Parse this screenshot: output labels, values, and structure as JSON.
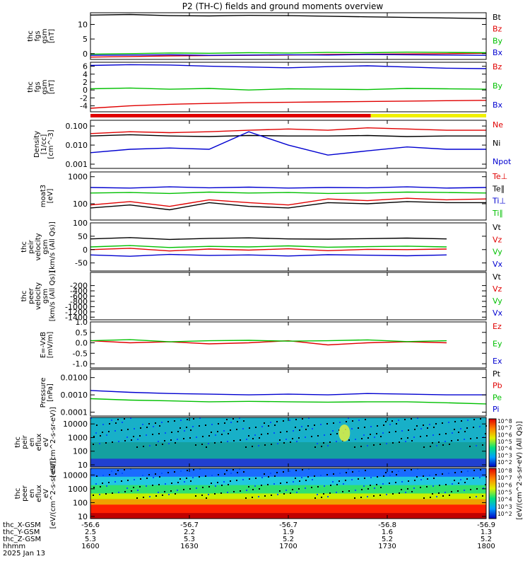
{
  "chart_data": {
    "type": "line",
    "title": "P2 (TH-C) fields and ground moments overview",
    "xlim": [
      1600,
      1800
    ],
    "xticks": [
      1600,
      1630,
      1700,
      1730,
      1800
    ],
    "xticks_minutes": [
      0,
      30,
      60,
      90,
      120
    ],
    "orbit": {
      "row_labels": [
        "thc_X-GSM",
        "thc_Y-GSM",
        "thc_Z-GSM",
        "hhmm",
        "2025 Jan 13"
      ],
      "columns": [
        [
          "-56.6",
          "2.5",
          "5.3",
          "1600"
        ],
        [
          "-56.7",
          "2.2",
          "5.3",
          "1630"
        ],
        [
          "-56.7",
          "1.9",
          "5.2",
          "1700"
        ],
        [
          "-56.8",
          "1.6",
          "5.2",
          "1730"
        ],
        [
          "-56.9",
          "1.3",
          "5.2",
          "1800"
        ]
      ]
    },
    "panels": [
      {
        "id": "fgs_gsm",
        "ylabel": [
          "thc",
          "fgs",
          "gsm",
          "[nT]"
        ],
        "ylim": [
          -2,
          14
        ],
        "yticks": [
          "10",
          "5",
          "0"
        ],
        "ytick_values": [
          10,
          5,
          0
        ],
        "series": [
          {
            "name": "Bt",
            "color": "#000000",
            "values": [
              13.2,
              13.4,
              13.0,
              12.9,
              13.1,
              13.0,
              12.8,
              12.6,
              12.4,
              12.2,
              12.0
            ]
          },
          {
            "name": "Bz",
            "color": "#e00000",
            "values": [
              -1.2,
              -1.0,
              -0.8,
              -0.7,
              -0.6,
              -0.5,
              -0.3,
              -0.2,
              -0.1,
              0.0,
              0.1
            ]
          },
          {
            "name": "By",
            "color": "#00c000",
            "values": [
              -0.2,
              0.0,
              0.2,
              0.1,
              0.3,
              0.2,
              0.4,
              0.3,
              0.5,
              0.4,
              0.3
            ]
          },
          {
            "name": "Bx",
            "color": "#0000d0",
            "values": [
              -0.6,
              -0.5,
              -0.4,
              -0.6,
              -0.5,
              -0.4,
              -0.5,
              -0.3,
              -0.4,
              -0.5,
              -0.6
            ]
          }
        ]
      },
      {
        "id": "fgs_gsm_dsl",
        "ylabel": [
          "thc",
          "fgs",
          "gsm",
          "[nT]"
        ],
        "ylim": [
          -5.5,
          7
        ],
        "yticks": [
          "6",
          "4",
          "2",
          "0",
          "-2",
          "-4"
        ],
        "ytick_values": [
          6,
          4,
          2,
          0,
          -2,
          -4
        ],
        "series": [
          {
            "name": "Bz",
            "color": "#e00000",
            "values": [
              -4.6,
              -4.0,
              -3.6,
              -3.4,
              -3.2,
              -3.1,
              -3.0,
              -2.9,
              -2.8,
              -2.7,
              -2.6
            ]
          },
          {
            "name": "By",
            "color": "#00c000",
            "values": [
              0.3,
              0.5,
              0.2,
              0.4,
              0.0,
              0.3,
              0.2,
              0.1,
              0.4,
              0.3,
              0.2
            ]
          },
          {
            "name": "Bx",
            "color": "#0000d0",
            "values": [
              6.2,
              6.4,
              6.3,
              6.0,
              5.8,
              5.6,
              5.9,
              6.1,
              5.8,
              5.5,
              5.4
            ]
          }
        ]
      },
      {
        "id": "density",
        "ylabel": [
          "Density",
          "[1/cc]",
          "[cm^-3]"
        ],
        "ylim": [
          0.0006,
          0.2
        ],
        "log": true,
        "yticks": [
          "0.100",
          "0.010",
          "0.001"
        ],
        "ytick_values": [
          0.1,
          0.01,
          0.001
        ],
        "series": [
          {
            "name": "Ne",
            "color": "#e00000",
            "values": [
              0.04,
              0.05,
              0.045,
              0.05,
              0.06,
              0.07,
              0.06,
              0.08,
              0.07,
              0.06,
              0.06
            ]
          },
          {
            "name": "Ni",
            "color": "#000000",
            "values": [
              0.03,
              0.035,
              0.03,
              0.028,
              0.032,
              0.03,
              0.03,
              0.032,
              0.028,
              0.03,
              0.03
            ]
          },
          {
            "name": "Npot",
            "color": "#0000d0",
            "values": [
              0.004,
              0.006,
              0.007,
              0.006,
              0.05,
              0.01,
              0.003,
              0.005,
              0.008,
              0.006,
              0.006
            ]
          }
        ]
      },
      {
        "id": "temp",
        "ylabel": [
          "moat3",
          "[eV]"
        ],
        "ylim": [
          25,
          1500
        ],
        "log": true,
        "yticks": [
          "1000",
          "100"
        ],
        "ytick_values": [
          1000,
          100
        ],
        "series": [
          {
            "name": "Te⊥",
            "color": "#e00000",
            "values": [
              90,
              120,
              80,
              140,
              110,
              90,
              150,
              130,
              160,
              140,
              150
            ]
          },
          {
            "name": "Te∥",
            "color": "#000000",
            "values": [
              70,
              90,
              60,
              110,
              80,
              70,
              110,
              100,
              120,
              110,
              110
            ]
          },
          {
            "name": "Ti⊥",
            "color": "#0000d0",
            "values": [
              400,
              380,
              420,
              390,
              410,
              380,
              400,
              390,
              420,
              380,
              400
            ]
          },
          {
            "name": "Ti∥",
            "color": "#00c000",
            "values": [
              250,
              260,
              240,
              270,
              250,
              260,
              240,
              250,
              270,
              260,
              250
            ]
          }
        ]
      },
      {
        "id": "peir_vel",
        "ylabel": [
          "thc",
          "peir",
          "velocity",
          "gsm",
          "[km/s (All Qs)]"
        ],
        "ylim": [
          -80,
          100
        ],
        "yticks": [
          "100",
          "50",
          "0",
          "-50"
        ],
        "ytick_values": [
          100,
          50,
          0,
          -50
        ],
        "series": [
          {
            "name": "Vt",
            "color": "#000000",
            "values": [
              40,
              45,
              38,
              42,
              44,
              40,
              39,
              41,
              43,
              40,
              null
            ]
          },
          {
            "name": "Vz",
            "color": "#e00000",
            "values": [
              0,
              5,
              -5,
              2,
              -2,
              3,
              -4,
              1,
              0,
              2,
              null
            ]
          },
          {
            "name": "Vy",
            "color": "#00c000",
            "values": [
              10,
              15,
              8,
              12,
              10,
              14,
              9,
              11,
              13,
              10,
              null
            ]
          },
          {
            "name": "Vx",
            "color": "#0000d0",
            "values": [
              -20,
              -25,
              -18,
              -22,
              -20,
              -24,
              -19,
              -21,
              -23,
              -20,
              null
            ]
          }
        ]
      },
      {
        "id": "peer_vel",
        "ylabel": [
          "thc",
          "peer",
          "velocity",
          "gsm",
          "[km/s (All Qs)]"
        ],
        "ylim": [
          -1500,
          300
        ],
        "yticks": [
          "-200",
          "-400",
          "-600",
          "-800",
          "-1000",
          "-1200",
          "-1400"
        ],
        "ytick_values": [
          -200,
          -400,
          -600,
          -800,
          -1000,
          -1200,
          -1400
        ],
        "series": [
          {
            "name": "Vt",
            "color": "#000000",
            "values": []
          },
          {
            "name": "Vz",
            "color": "#e00000",
            "values": []
          },
          {
            "name": "Vy",
            "color": "#00c000",
            "values": []
          },
          {
            "name": "Vx",
            "color": "#0000d0",
            "values": []
          }
        ]
      },
      {
        "id": "efield",
        "ylabel": [
          "E=-VxB",
          "[mV/m]"
        ],
        "ylim": [
          -1.2,
          1.0
        ],
        "yticks": [
          "1.0",
          "0.5",
          "0.0",
          "-0.5",
          "-1.0"
        ],
        "ytick_values": [
          1.0,
          0.5,
          0.0,
          -0.5,
          -1.0
        ],
        "series": [
          {
            "name": "Ez",
            "color": "#e00000",
            "values": [
              0.1,
              0.0,
              0.05,
              -0.05,
              0.0,
              0.1,
              -0.1,
              0.0,
              0.05,
              0.0,
              null
            ]
          },
          {
            "name": "Ey",
            "color": "#00c000",
            "values": [
              0.1,
              0.15,
              0.05,
              0.1,
              0.12,
              0.08,
              0.1,
              0.14,
              0.06,
              0.1,
              null
            ]
          },
          {
            "name": "Ex",
            "color": "#0000d0",
            "values": []
          }
        ]
      },
      {
        "id": "pressure",
        "ylabel": [
          "Pressure",
          "[nPa]"
        ],
        "ylim": [
          6e-05,
          0.03
        ],
        "log": true,
        "yticks": [
          "0.0100",
          "0.0010",
          "0.0001"
        ],
        "ytick_values": [
          0.01,
          0.001,
          0.0001
        ],
        "series": [
          {
            "name": "Pt",
            "color": "#000000",
            "values": []
          },
          {
            "name": "Pb",
            "color": "#e00000",
            "values": []
          },
          {
            "name": "Pe",
            "color": "#00c000",
            "values": [
              0.0006,
              0.0005,
              0.00045,
              0.0004,
              0.00042,
              0.0004,
              0.00038,
              0.0004,
              0.0004,
              0.00035,
              0.0003
            ]
          },
          {
            "name": "Pi",
            "color": "#0000d0",
            "values": [
              0.0018,
              0.0014,
              0.0012,
              0.0011,
              0.001,
              0.0011,
              0.001,
              0.0012,
              0.0011,
              0.001,
              0.001
            ]
          }
        ]
      },
      {
        "id": "peir_spec",
        "type": "heatmap",
        "ylabel": [
          "thc",
          "peir",
          "en",
          "eflux",
          "eV",
          "[eV/(cm^2-s-sr-eV)]"
        ],
        "ylim": [
          7,
          30000
        ],
        "log": true,
        "yticks": [
          "10000",
          "1000",
          "100",
          "10"
        ],
        "ytick_values": [
          10000,
          1000,
          100,
          10
        ]
      },
      {
        "id": "peer_spec",
        "type": "heatmap",
        "ylabel": [
          "thc",
          "peer",
          "en",
          "eflux",
          "eV",
          "[eV/(cm^2-s-sr-eV)]"
        ],
        "ylim": [
          7,
          30000
        ],
        "log": true,
        "yticks": [
          "10000",
          "1000",
          "100",
          "10"
        ],
        "ytick_values": [
          10000,
          1000,
          100,
          10
        ]
      }
    ],
    "colorbar": {
      "label": "[eV/(cm^2-s-sr-eV) (All Qs)]",
      "ticks": [
        "10^8",
        "10^7",
        "10^6",
        "10^5",
        "10^4",
        "10^3",
        "10^2",
        "10^8",
        "10^7",
        "10^6",
        "10^5",
        "10^4",
        "10^3",
        "10^2"
      ]
    },
    "mode_bar": {
      "colors": [
        "#e00000",
        "#f0f000"
      ],
      "switch_time": 1725
    }
  }
}
